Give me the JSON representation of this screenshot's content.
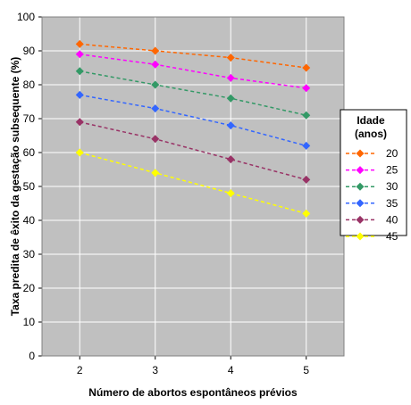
{
  "chart_data": {
    "type": "line",
    "title": "",
    "xlabel": "Número de abortos espontâneos prévios",
    "ylabel": "Taxa predita de êxito da gestação subsequente (%)",
    "x": [
      2,
      3,
      4,
      5
    ],
    "xlim": [
      1.5,
      5.5
    ],
    "ylim": [
      0,
      100
    ],
    "yticks": [
      "0",
      "10",
      "20",
      "30",
      "40",
      "50",
      "60",
      "70",
      "80",
      "90",
      "100"
    ],
    "xticks": [
      "2",
      "3",
      "4",
      "5"
    ],
    "grid": true,
    "legend": {
      "title_line1": "Idade",
      "title_line2": "(anos)",
      "placement": "right"
    },
    "series": [
      {
        "name": "20",
        "color": "#FF6600",
        "values": [
          92,
          90,
          88,
          85
        ]
      },
      {
        "name": "25",
        "color": "#FF00FF",
        "values": [
          89,
          86,
          82,
          79
        ]
      },
      {
        "name": "30",
        "color": "#339966",
        "values": [
          84,
          80,
          76,
          71
        ]
      },
      {
        "name": "35",
        "color": "#3366FF",
        "values": [
          77,
          73,
          68,
          62
        ]
      },
      {
        "name": "40",
        "color": "#993366",
        "values": [
          69,
          64,
          58,
          52
        ]
      },
      {
        "name": "45",
        "color": "#FFFF00",
        "values": [
          60,
          54,
          48,
          42
        ]
      }
    ],
    "plot_background": "#C0C0C0",
    "gridline_color": "#FFFFFF"
  }
}
